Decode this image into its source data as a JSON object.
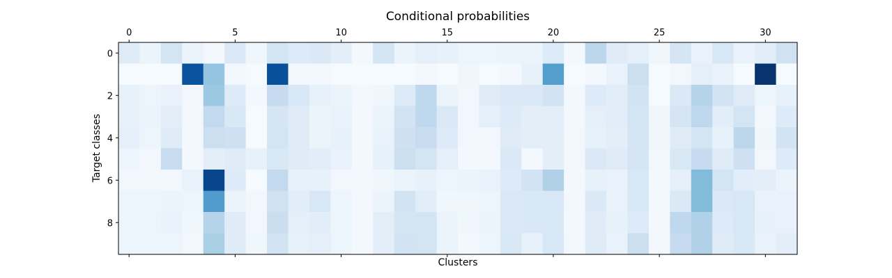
{
  "chart_data": {
    "type": "heatmap",
    "title": "Conditional probabilities",
    "xlabel": "Clusters",
    "ylabel": "Target classes",
    "x_ticks": [
      0,
      5,
      10,
      15,
      20,
      25,
      30
    ],
    "y_ticks": [
      0,
      2,
      4,
      6,
      8
    ],
    "x_tick_position": "top",
    "n_cols": 32,
    "n_rows": 10,
    "colormap": "Blues",
    "colormap_stops": [
      "#f7fbff",
      "#deebf7",
      "#c6dbef",
      "#9ecae1",
      "#6baed6",
      "#4292c6",
      "#2171b5",
      "#08519c",
      "#08306b"
    ],
    "vmin": 0,
    "vmax": 1,
    "values": [
      [
        0.12,
        0.06,
        0.18,
        0.06,
        0.03,
        0.14,
        0.04,
        0.18,
        0.13,
        0.14,
        0.1,
        0.02,
        0.18,
        0.06,
        0.09,
        0.08,
        0.05,
        0.05,
        0.06,
        0.06,
        0.13,
        0.02,
        0.28,
        0.12,
        0.09,
        0.04,
        0.17,
        0.07,
        0.16,
        0.07,
        0.11,
        0.2
      ],
      [
        0.01,
        0.01,
        0.01,
        0.87,
        0.4,
        0.03,
        0.01,
        0.88,
        0.02,
        0.02,
        0.01,
        0.01,
        0.01,
        0.01,
        0.02,
        0.01,
        0.04,
        0.01,
        0.02,
        0.08,
        0.57,
        0.01,
        0.02,
        0.07,
        0.22,
        0.01,
        0.03,
        0.09,
        0.07,
        0.01,
        0.99,
        0.01
      ],
      [
        0.08,
        0.05,
        0.07,
        0.03,
        0.38,
        0.13,
        0.02,
        0.25,
        0.16,
        0.08,
        0.06,
        0.02,
        0.04,
        0.13,
        0.27,
        0.06,
        0.03,
        0.12,
        0.14,
        0.14,
        0.19,
        0.02,
        0.13,
        0.11,
        0.19,
        0.01,
        0.14,
        0.3,
        0.19,
        0.12,
        0.05,
        0.08
      ],
      [
        0.08,
        0.06,
        0.1,
        0.02,
        0.26,
        0.15,
        0.01,
        0.17,
        0.12,
        0.06,
        0.07,
        0.02,
        0.06,
        0.19,
        0.27,
        0.14,
        0.03,
        0.09,
        0.13,
        0.1,
        0.1,
        0.02,
        0.09,
        0.11,
        0.18,
        0.04,
        0.17,
        0.27,
        0.11,
        0.18,
        0.03,
        0.13
      ],
      [
        0.09,
        0.05,
        0.12,
        0.02,
        0.22,
        0.21,
        0.01,
        0.18,
        0.12,
        0.06,
        0.08,
        0.02,
        0.07,
        0.21,
        0.24,
        0.13,
        0.03,
        0.03,
        0.12,
        0.1,
        0.1,
        0.03,
        0.08,
        0.1,
        0.17,
        0.04,
        0.12,
        0.18,
        0.08,
        0.28,
        0.04,
        0.19
      ],
      [
        0.05,
        0.03,
        0.24,
        0.02,
        0.1,
        0.12,
        0.08,
        0.15,
        0.12,
        0.11,
        0.07,
        0.02,
        0.08,
        0.22,
        0.18,
        0.09,
        0.02,
        0.02,
        0.14,
        0.02,
        0.1,
        0.03,
        0.14,
        0.12,
        0.17,
        0.03,
        0.15,
        0.25,
        0.12,
        0.21,
        0.03,
        0.13
      ],
      [
        0.03,
        0.03,
        0.03,
        0.07,
        0.92,
        0.13,
        0.01,
        0.26,
        0.08,
        0.08,
        0.03,
        0.02,
        0.04,
        0.06,
        0.08,
        0.05,
        0.06,
        0.07,
        0.13,
        0.19,
        0.32,
        0.02,
        0.08,
        0.07,
        0.16,
        0.02,
        0.09,
        0.44,
        0.18,
        0.11,
        0.1,
        0.06
      ],
      [
        0.05,
        0.05,
        0.06,
        0.05,
        0.58,
        0.06,
        0.03,
        0.2,
        0.11,
        0.16,
        0.05,
        0.02,
        0.06,
        0.19,
        0.11,
        0.04,
        0.04,
        0.05,
        0.14,
        0.15,
        0.16,
        0.02,
        0.14,
        0.07,
        0.15,
        0.02,
        0.14,
        0.44,
        0.14,
        0.16,
        0.07,
        0.07
      ],
      [
        0.05,
        0.05,
        0.07,
        0.04,
        0.3,
        0.12,
        0.03,
        0.23,
        0.09,
        0.11,
        0.05,
        0.02,
        0.1,
        0.17,
        0.18,
        0.06,
        0.04,
        0.06,
        0.14,
        0.15,
        0.15,
        0.02,
        0.12,
        0.08,
        0.13,
        0.02,
        0.27,
        0.32,
        0.13,
        0.16,
        0.08,
        0.07
      ],
      [
        0.05,
        0.05,
        0.05,
        0.03,
        0.34,
        0.12,
        0.04,
        0.19,
        0.08,
        0.09,
        0.05,
        0.02,
        0.1,
        0.19,
        0.18,
        0.06,
        0.02,
        0.05,
        0.15,
        0.08,
        0.16,
        0.02,
        0.12,
        0.07,
        0.22,
        0.02,
        0.25,
        0.32,
        0.12,
        0.15,
        0.07,
        0.1
      ]
    ]
  }
}
